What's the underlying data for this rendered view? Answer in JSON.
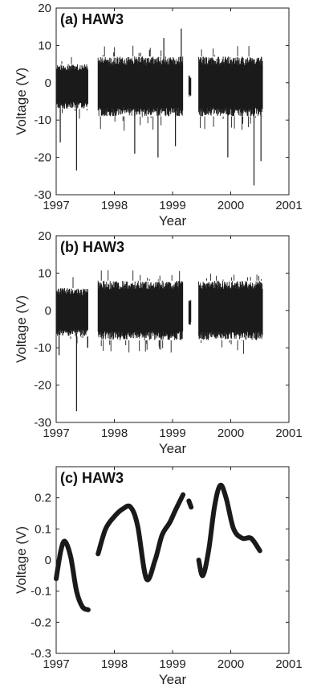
{
  "chart_data": [
    {
      "type": "line",
      "title": "(a) HAW3",
      "xlabel": "Year",
      "ylabel": "Voltage (V)",
      "xlim": [
        1997,
        2001
      ],
      "ylim": [
        -30,
        20
      ],
      "xticks": [
        1997,
        1998,
        1999,
        2000,
        2001
      ],
      "yticks": [
        -30,
        -20,
        -10,
        0,
        10,
        20
      ],
      "grid": false,
      "color": "#1a1a1a",
      "series": [
        {
          "kind": "noise-envelope",
          "segments": [
            {
              "x": [
                1997.0,
                1997.55
              ],
              "typical_range": [
                -7,
                5
              ]
            },
            {
              "x": [
                1997.72,
                1999.18
              ],
              "typical_range": [
                -9,
                7
              ]
            },
            {
              "x": [
                1999.28,
                1999.32
              ],
              "typical_range": [
                -4,
                2
              ]
            },
            {
              "x": [
                1999.45,
                2000.55
              ],
              "typical_range": [
                -9,
                7
              ]
            }
          ],
          "peaks": [
            {
              "x": 1997.35,
              "y": -23.5
            },
            {
              "x": 1997.07,
              "y": -16
            },
            {
              "x": 1998.85,
              "y": 12
            },
            {
              "x": 1999.15,
              "y": 14.5
            },
            {
              "x": 1998.35,
              "y": -19
            },
            {
              "x": 1998.75,
              "y": -20
            },
            {
              "x": 1999.05,
              "y": -17
            },
            {
              "x": 1999.95,
              "y": -20
            },
            {
              "x": 2000.4,
              "y": -27.5
            },
            {
              "x": 2000.52,
              "y": -21
            }
          ]
        }
      ]
    },
    {
      "type": "line",
      "title": "(b) HAW3",
      "xlabel": "Year",
      "ylabel": "Voltage (V)",
      "xlim": [
        1997,
        2001
      ],
      "ylim": [
        -30,
        20
      ],
      "xticks": [
        1997,
        1998,
        1999,
        2000,
        2001
      ],
      "yticks": [
        -30,
        -20,
        -10,
        0,
        10,
        20
      ],
      "grid": false,
      "color": "#1a1a1a",
      "series": [
        {
          "kind": "noise-envelope",
          "segments": [
            {
              "x": [
                1997.0,
                1997.55
              ],
              "typical_range": [
                -7,
                6
              ]
            },
            {
              "x": [
                1997.72,
                1999.18
              ],
              "typical_range": [
                -8,
                8
              ]
            },
            {
              "x": [
                1999.28,
                1999.32
              ],
              "typical_range": [
                -4,
                3
              ]
            },
            {
              "x": [
                1999.45,
                2000.55
              ],
              "typical_range": [
                -8,
                8
              ]
            }
          ],
          "peaks": [
            {
              "x": 1997.35,
              "y": -27
            },
            {
              "x": 1997.05,
              "y": -12
            }
          ]
        }
      ]
    },
    {
      "type": "line",
      "title": "(c) HAW3",
      "xlabel": "Year",
      "ylabel": "Voltage (V)",
      "xlim": [
        1997,
        2001
      ],
      "ylim": [
        -0.3,
        0.3
      ],
      "xticks": [
        1997,
        1998,
        1999,
        2000,
        2001
      ],
      "yticks": [
        -0.3,
        -0.2,
        -0.1,
        0,
        0.1,
        0.2
      ],
      "grid": false,
      "color": "#1a1a1a",
      "series": [
        {
          "kind": "curve",
          "segments": [
            {
              "x": [
                1997.0,
                1997.08,
                1997.15,
                1997.25,
                1997.35,
                1997.45,
                1997.55
              ],
              "y": [
                -0.06,
                0.03,
                0.06,
                0.01,
                -0.1,
                -0.15,
                -0.16
              ]
            },
            {
              "x": [
                1997.72,
                1997.85,
                1998.0,
                1998.15,
                1998.28,
                1998.4,
                1998.55,
                1998.7,
                1998.82,
                1998.95,
                1999.05,
                1999.18
              ],
              "y": [
                0.02,
                0.1,
                0.14,
                0.165,
                0.17,
                0.11,
                -0.06,
                0.0,
                0.08,
                0.12,
                0.16,
                0.21
              ]
            },
            {
              "x": [
                1999.28,
                1999.32
              ],
              "y": [
                0.19,
                0.17
              ]
            },
            {
              "x": [
                1999.45,
                1999.52,
                1999.62,
                1999.72,
                1999.82,
                1999.92,
                2000.05,
                2000.2,
                2000.35,
                2000.5
              ],
              "y": [
                0.0,
                -0.05,
                0.03,
                0.17,
                0.24,
                0.2,
                0.1,
                0.07,
                0.07,
                0.03
              ]
            }
          ]
        }
      ]
    }
  ]
}
